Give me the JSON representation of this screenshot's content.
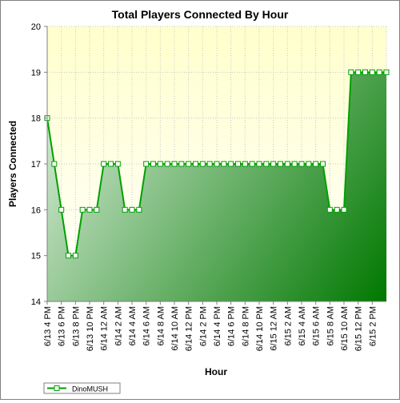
{
  "chart_data": {
    "type": "area",
    "title": "Total Players Connected By Hour",
    "xlabel": "Hour",
    "ylabel": "Players Connected",
    "ylim": [
      14,
      20
    ],
    "y_ticks": [
      "14",
      "15",
      "16",
      "17",
      "18",
      "19",
      "20"
    ],
    "x_tick_labels": [
      "6/13 4 PM",
      "6/13 6 PM",
      "6/13 8 PM",
      "6/13 10 PM",
      "6/14 12 AM",
      "6/14 2 AM",
      "6/14 4 AM",
      "6/14 6 AM",
      "6/14 8 AM",
      "6/14 10 AM",
      "6/14 12 PM",
      "6/14 2 PM",
      "6/14 4 PM",
      "6/14 6 PM",
      "6/14 8 PM",
      "6/14 10 PM",
      "6/15 12 AM",
      "6/15 2 AM",
      "6/15 4 AM",
      "6/15 6 AM",
      "6/15 8 AM",
      "6/15 10 AM",
      "6/15 12 PM",
      "6/15 2 PM"
    ],
    "grid": true,
    "legend_position": "bottom-left",
    "colors": {
      "line": "#00a000",
      "fill_light": "#e0f0e0",
      "fill_dark": "#007800",
      "plot_bg_light": "#ffffcc",
      "plot_bg_white": "#ffffff"
    },
    "series": [
      {
        "name": "DinoMUSH",
        "values": [
          18,
          17,
          16,
          15,
          15,
          16,
          16,
          16,
          17,
          17,
          17,
          16,
          16,
          16,
          17,
          17,
          17,
          17,
          17,
          17,
          17,
          17,
          17,
          17,
          17,
          17,
          17,
          17,
          17,
          17,
          17,
          17,
          17,
          17,
          17,
          17,
          17,
          17,
          17,
          17,
          16,
          16,
          16,
          19,
          19,
          19,
          19,
          19,
          19
        ]
      }
    ]
  }
}
